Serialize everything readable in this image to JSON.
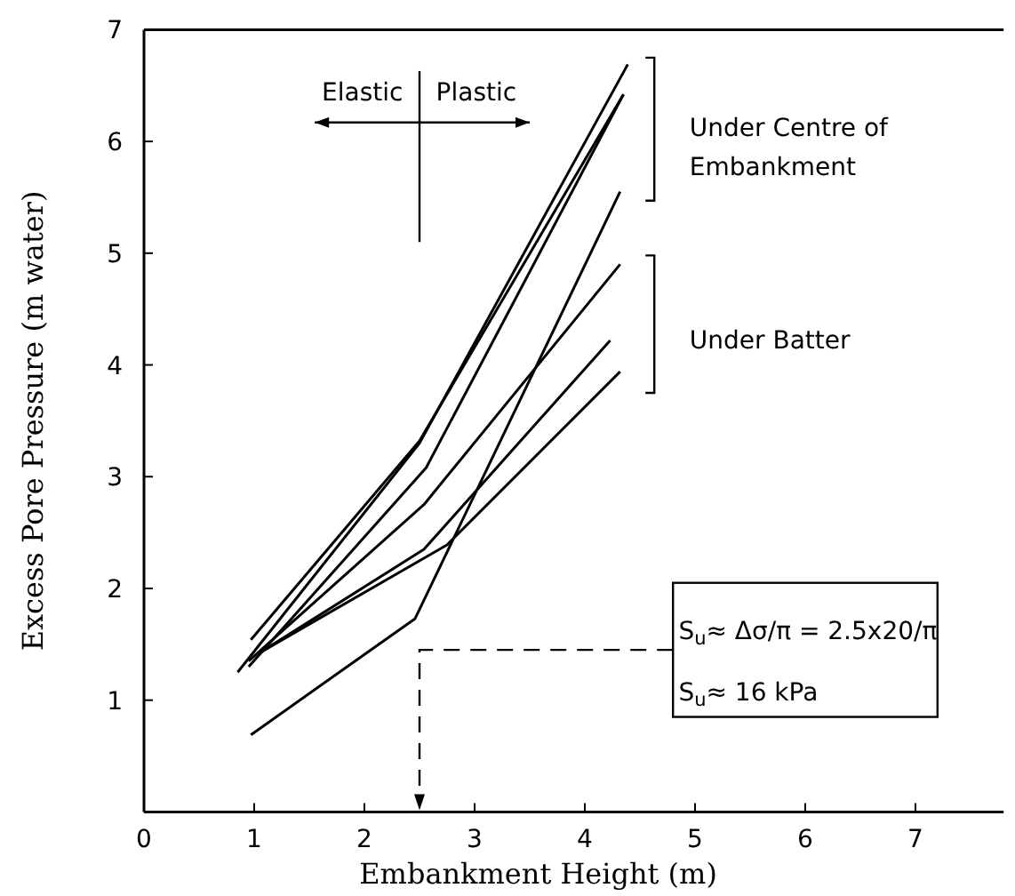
{
  "chart_data": {
    "type": "line",
    "xlabel": "Embankment Height (m)",
    "ylabel": "Excess Pore Pressure (m water)",
    "xlim": [
      0,
      7.8
    ],
    "xticks": [
      0,
      1,
      2,
      3,
      4,
      5,
      6,
      7
    ],
    "ylim": [
      0,
      7
    ],
    "yticks": [
      {
        "value": 0,
        "label": null
      },
      1,
      2,
      3,
      4,
      5,
      6,
      7
    ],
    "grid": false,
    "marker": "none",
    "line_style": "solid",
    "series": [
      {
        "color": "#000000",
        "x": [
          0.85,
          2.5,
          4.39
        ],
        "values": [
          1.25,
          3.3,
          6.69
        ]
      },
      {
        "color": "#000000",
        "x": [
          0.97,
          2.5,
          4.35
        ],
        "values": [
          1.54,
          3.32,
          6.42
        ]
      },
      {
        "color": "#000000",
        "x": [
          0.95,
          2.56,
          4.35
        ],
        "values": [
          1.3,
          3.08,
          6.42
        ]
      },
      {
        "color": "#000000",
        "x": [
          0.95,
          2.54,
          4.32
        ],
        "values": [
          1.35,
          2.75,
          4.9
        ]
      },
      {
        "color": "#000000",
        "x": [
          1.06,
          2.54,
          4.23
        ],
        "values": [
          1.43,
          2.35,
          4.22
        ]
      },
      {
        "color": "#000000",
        "x": [
          1.06,
          2.75,
          4.32
        ],
        "values": [
          1.43,
          2.39,
          3.94
        ]
      },
      {
        "color": "#000000",
        "x": [
          0.97,
          2.46,
          4.32
        ],
        "values": [
          0.69,
          1.73,
          5.55
        ]
      }
    ],
    "annotations": [
      "Elastic",
      "Plastic",
      "Under Centre of Embankment",
      "Under Batter",
      "S$_{u}$≈ Δσ/π = 2.5x20/π",
      "S$_{u}$≈ 16 kPa"
    ]
  }
}
